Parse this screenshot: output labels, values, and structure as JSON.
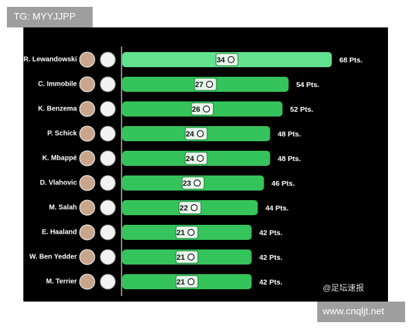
{
  "chart_data": {
    "type": "bar",
    "orientation": "horizontal",
    "categories": [
      "R. Lewandowski",
      "C. Immobile",
      "K. Benzema",
      "P. Schick",
      "K. Mbappé",
      "D. Vlahovic",
      "M. Salah",
      "E. Haaland",
      "W. Ben Yedder",
      "M. Terrier"
    ],
    "values": [
      68,
      54,
      52,
      48,
      48,
      46,
      44,
      42,
      42,
      42
    ],
    "value_labels": [
      "68 Pts.",
      "54 Pts.",
      "52 Pts.",
      "48 Pts.",
      "48 Pts.",
      "46 Pts.",
      "44 Pts.",
      "42 Pts.",
      "42 Pts.",
      "42 Pts."
    ],
    "goals": [
      34,
      27,
      26,
      24,
      24,
      23,
      22,
      21,
      21,
      21
    ],
    "colors": [
      "#62e28f",
      "#35c35c",
      "#35c35c",
      "#35c35c",
      "#35c35c",
      "#35c35c",
      "#35c35c",
      "#35c35c",
      "#35c35c",
      "#35c35c"
    ],
    "xlim": [
      0,
      80
    ],
    "watermarks": [
      "TG: MYYJJPP",
      "@足坛速报",
      "www.cnqljt.net"
    ]
  }
}
